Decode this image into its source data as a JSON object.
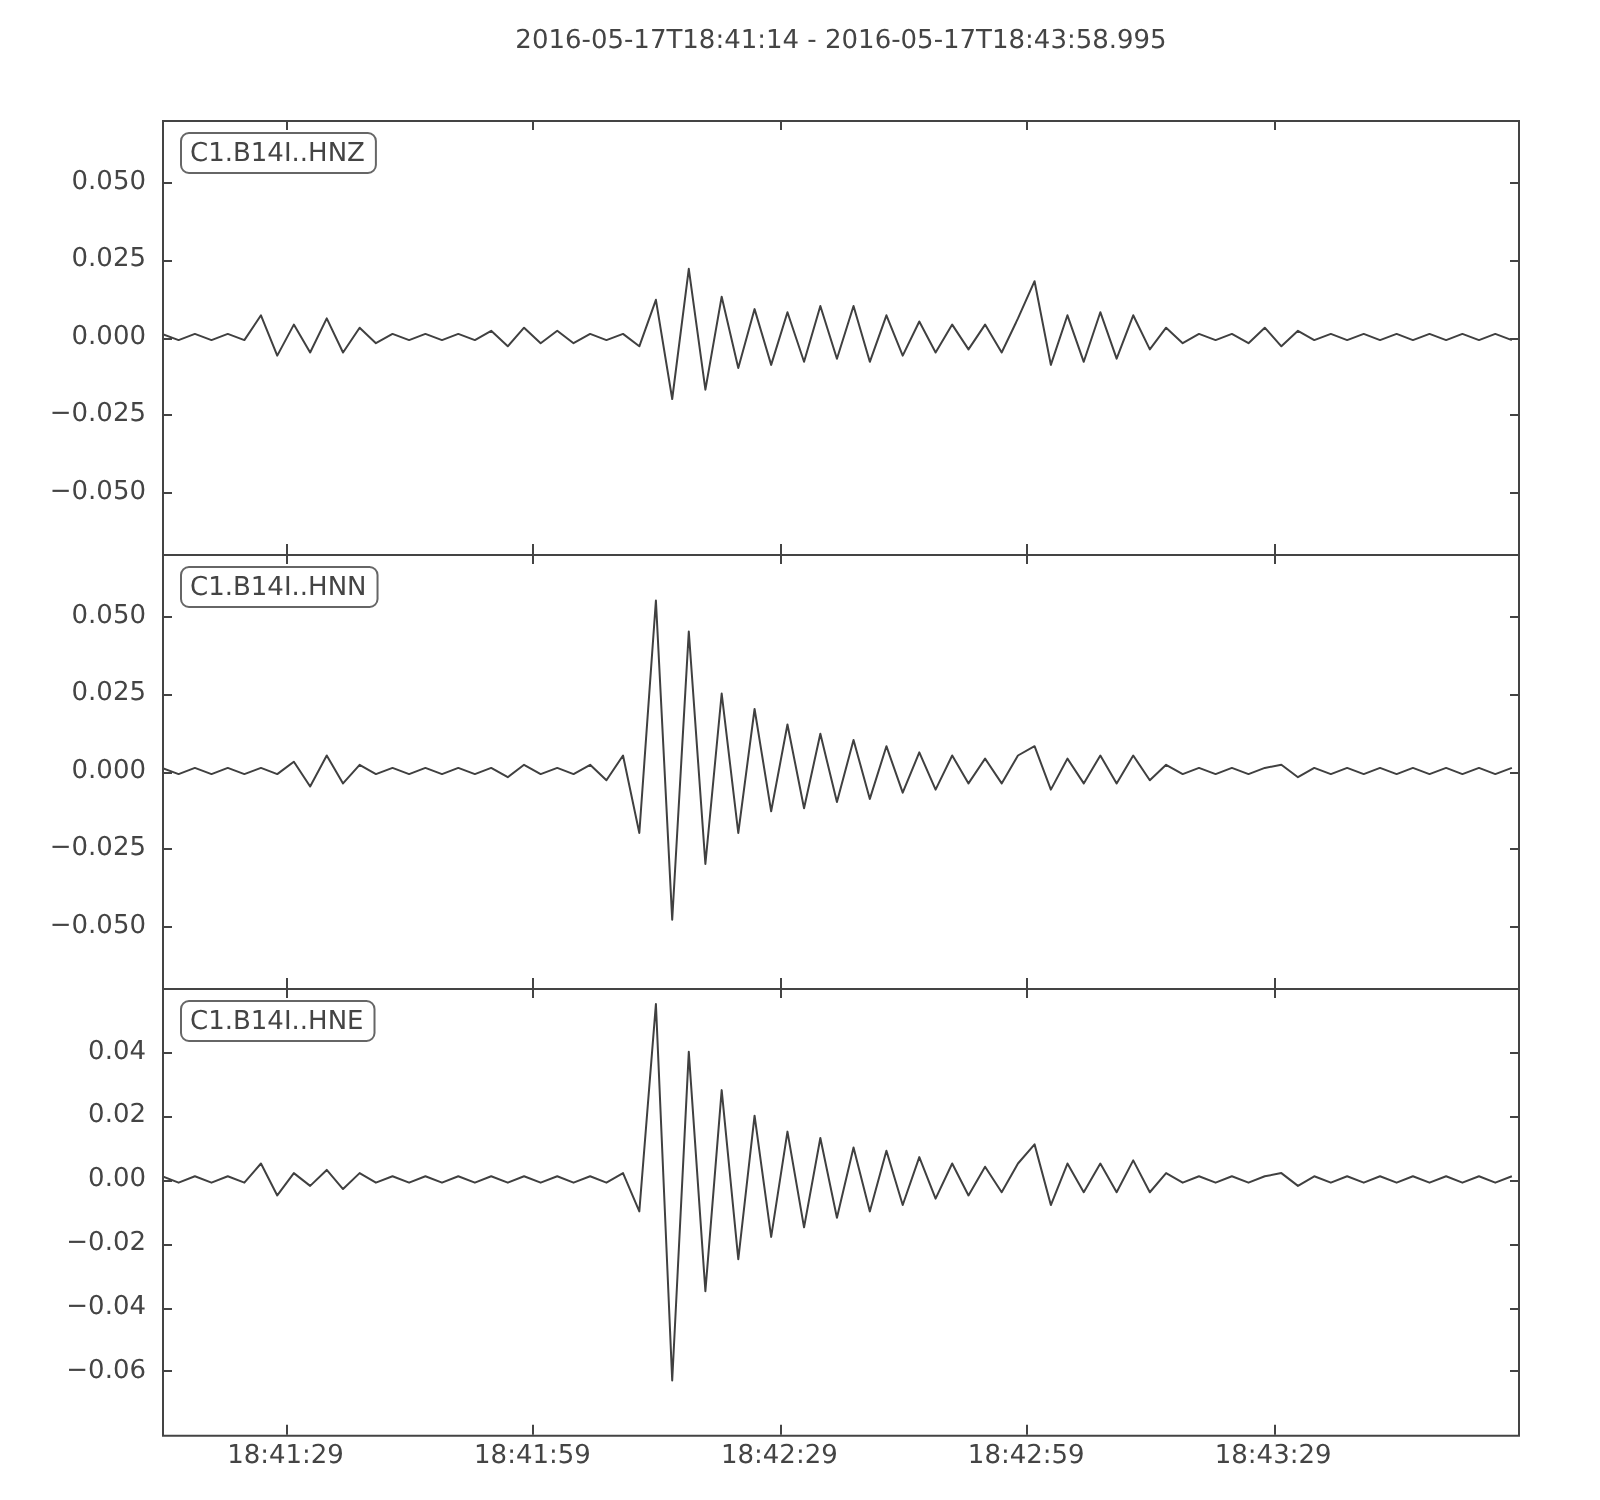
{
  "chart_data": [
    {
      "type": "line",
      "title": "2016-05-17T18:41:14  -  2016-05-17T18:43:58.995",
      "annotations": [
        "C1.B14I..HNZ"
      ],
      "legend": false,
      "grid": false,
      "marker": "none",
      "line_style": "solid",
      "tick_labels": "y",
      "x": [
        18.68722,
        18.68778,
        18.68833,
        18.68889,
        18.68944,
        18.69,
        18.69056,
        18.69111,
        18.69167,
        18.69222,
        18.69278,
        18.69333,
        18.69389,
        18.69444,
        18.695,
        18.69556,
        18.69611,
        18.69667,
        18.69722,
        18.69778,
        18.69833,
        18.69889,
        18.69944,
        18.7,
        18.70056,
        18.70111,
        18.70167,
        18.70222,
        18.70278,
        18.70333,
        18.70389,
        18.70444,
        18.705,
        18.70556,
        18.70611,
        18.70667,
        18.70722,
        18.70778,
        18.70833,
        18.70889,
        18.70944,
        18.71,
        18.71056,
        18.71111,
        18.71167,
        18.71222,
        18.71278,
        18.71333,
        18.71389,
        18.71444,
        18.715,
        18.71556,
        18.71611,
        18.71667,
        18.71722,
        18.71778,
        18.71833,
        18.71889,
        18.71944,
        18.72,
        18.72056,
        18.72111,
        18.72167,
        18.72222,
        18.72278,
        18.72333,
        18.72389,
        18.72444,
        18.725,
        18.72556,
        18.72611,
        18.72667,
        18.72722,
        18.72778,
        18.72833,
        18.72889,
        18.72944,
        18.73,
        18.73056,
        18.73111,
        18.73167,
        18.73222,
        18.73278
      ],
      "series": [
        {
          "color": "#404040",
          "values": [
            0.001,
            -0.001,
            0.001,
            -0.001,
            0.001,
            -0.001,
            0.007,
            -0.006,
            0.004,
            -0.005,
            0.006,
            -0.005,
            0.003,
            -0.002,
            0.001,
            -0.001,
            0.001,
            -0.001,
            0.001,
            -0.001,
            0.002,
            -0.003,
            0.003,
            -0.002,
            0.002,
            -0.002,
            0.001,
            -0.001,
            0.001,
            -0.003,
            0.012,
            -0.02,
            0.022,
            -0.017,
            0.013,
            -0.01,
            0.009,
            -0.009,
            0.008,
            -0.008,
            0.01,
            -0.007,
            0.01,
            -0.008,
            0.007,
            -0.006,
            0.005,
            -0.005,
            0.004,
            -0.004,
            0.004,
            -0.005,
            0.006,
            0.018,
            -0.009,
            0.007,
            -0.008,
            0.008,
            -0.007,
            0.007,
            -0.004,
            0.003,
            -0.002,
            0.001,
            -0.001,
            0.001,
            -0.002,
            0.003,
            -0.003,
            0.002,
            -0.001,
            0.001,
            -0.001,
            0.001,
            -0.001,
            0.001,
            -0.001,
            0.001,
            -0.001,
            0.001,
            -0.001,
            0.001,
            -0.001
          ]
        }
      ],
      "xlim": [
        18.68722,
        18.7330542
      ],
      "xticks": [
        {
          "value": 18.6913889,
          "label": null
        },
        {
          "value": 18.6997222,
          "label": null
        },
        {
          "value": 18.7080556,
          "label": null
        },
        {
          "value": 18.7163889,
          "label": null
        },
        {
          "value": 18.7247222,
          "label": null
        }
      ],
      "ylim": [
        -0.07,
        0.07
      ],
      "yticks": [
        {
          "value": -0.05,
          "label": "−0.050"
        },
        {
          "value": -0.025,
          "label": "−0.025"
        },
        {
          "value": 0,
          "label": "0.000"
        },
        {
          "value": 0.025,
          "label": "0.025"
        },
        {
          "value": 0.05,
          "label": "0.050"
        }
      ]
    },
    {
      "type": "line",
      "annotations": [
        "C1.B14I..HNN"
      ],
      "legend": false,
      "grid": false,
      "marker": "none",
      "line_style": "solid",
      "tick_labels": "y",
      "x": [
        18.68722,
        18.68778,
        18.68833,
        18.68889,
        18.68944,
        18.69,
        18.69056,
        18.69111,
        18.69167,
        18.69222,
        18.69278,
        18.69333,
        18.69389,
        18.69444,
        18.695,
        18.69556,
        18.69611,
        18.69667,
        18.69722,
        18.69778,
        18.69833,
        18.69889,
        18.69944,
        18.7,
        18.70056,
        18.70111,
        18.70167,
        18.70222,
        18.70278,
        18.70333,
        18.70389,
        18.70444,
        18.705,
        18.70556,
        18.70611,
        18.70667,
        18.70722,
        18.70778,
        18.70833,
        18.70889,
        18.70944,
        18.71,
        18.71056,
        18.71111,
        18.71167,
        18.71222,
        18.71278,
        18.71333,
        18.71389,
        18.71444,
        18.715,
        18.71556,
        18.71611,
        18.71667,
        18.71722,
        18.71778,
        18.71833,
        18.71889,
        18.71944,
        18.72,
        18.72056,
        18.72111,
        18.72167,
        18.72222,
        18.72278,
        18.72333,
        18.72389,
        18.72444,
        18.725,
        18.72556,
        18.72611,
        18.72667,
        18.72722,
        18.72778,
        18.72833,
        18.72889,
        18.72944,
        18.73,
        18.73056,
        18.73111,
        18.73167,
        18.73222,
        18.73278
      ],
      "series": [
        {
          "color": "#404040",
          "values": [
            0.001,
            -0.001,
            0.001,
            -0.001,
            0.001,
            -0.001,
            0.001,
            -0.001,
            0.003,
            -0.005,
            0.005,
            -0.004,
            0.002,
            -0.001,
            0.001,
            -0.001,
            0.001,
            -0.001,
            0.001,
            -0.001,
            0.001,
            -0.002,
            0.002,
            -0.001,
            0.001,
            -0.001,
            0.002,
            -0.003,
            0.005,
            -0.02,
            0.055,
            -0.048,
            0.045,
            -0.03,
            0.025,
            -0.02,
            0.02,
            -0.013,
            0.015,
            -0.012,
            0.012,
            -0.01,
            0.01,
            -0.009,
            0.008,
            -0.007,
            0.006,
            -0.006,
            0.005,
            -0.004,
            0.004,
            -0.004,
            0.005,
            0.008,
            -0.006,
            0.004,
            -0.004,
            0.005,
            -0.004,
            0.005,
            -0.003,
            0.002,
            -0.001,
            0.001,
            -0.001,
            0.001,
            -0.001,
            0.001,
            0.002,
            -0.002,
            0.001,
            -0.001,
            0.001,
            -0.001,
            0.001,
            -0.001,
            0.001,
            -0.001,
            0.001,
            -0.001,
            0.001,
            -0.001,
            0.001
          ]
        }
      ],
      "xlim": [
        18.68722,
        18.7330542
      ],
      "xticks": [
        {
          "value": 18.6913889,
          "label": null
        },
        {
          "value": 18.6997222,
          "label": null
        },
        {
          "value": 18.7080556,
          "label": null
        },
        {
          "value": 18.7163889,
          "label": null
        },
        {
          "value": 18.7247222,
          "label": null
        }
      ],
      "ylim": [
        -0.07,
        0.07
      ],
      "yticks": [
        {
          "value": -0.05,
          "label": "−0.050"
        },
        {
          "value": -0.025,
          "label": "−0.025"
        },
        {
          "value": 0,
          "label": "0.000"
        },
        {
          "value": 0.025,
          "label": "0.025"
        },
        {
          "value": 0.05,
          "label": "0.050"
        }
      ]
    },
    {
      "type": "line",
      "annotations": [
        "C1.B14I..HNE"
      ],
      "legend": false,
      "grid": false,
      "marker": "none",
      "line_style": "solid",
      "x": [
        18.68722,
        18.68778,
        18.68833,
        18.68889,
        18.68944,
        18.69,
        18.69056,
        18.69111,
        18.69167,
        18.69222,
        18.69278,
        18.69333,
        18.69389,
        18.69444,
        18.695,
        18.69556,
        18.69611,
        18.69667,
        18.69722,
        18.69778,
        18.69833,
        18.69889,
        18.69944,
        18.7,
        18.70056,
        18.70111,
        18.70167,
        18.70222,
        18.70278,
        18.70333,
        18.70389,
        18.70444,
        18.705,
        18.70556,
        18.70611,
        18.70667,
        18.70722,
        18.70778,
        18.70833,
        18.70889,
        18.70944,
        18.71,
        18.71056,
        18.71111,
        18.71167,
        18.71222,
        18.71278,
        18.71333,
        18.71389,
        18.71444,
        18.715,
        18.71556,
        18.71611,
        18.71667,
        18.71722,
        18.71778,
        18.71833,
        18.71889,
        18.71944,
        18.72,
        18.72056,
        18.72111,
        18.72167,
        18.72222,
        18.72278,
        18.72333,
        18.72389,
        18.72444,
        18.725,
        18.72556,
        18.72611,
        18.72667,
        18.72722,
        18.72778,
        18.72833,
        18.72889,
        18.72944,
        18.73,
        18.73056,
        18.73111,
        18.73167,
        18.73222,
        18.73278
      ],
      "series": [
        {
          "color": "#404040",
          "values": [
            0.001,
            -0.001,
            0.001,
            -0.001,
            0.001,
            -0.001,
            0.005,
            -0.005,
            0.002,
            -0.002,
            0.003,
            -0.003,
            0.002,
            -0.001,
            0.001,
            -0.001,
            0.001,
            -0.001,
            0.001,
            -0.001,
            0.001,
            -0.001,
            0.001,
            -0.001,
            0.001,
            -0.001,
            0.001,
            -0.001,
            0.002,
            -0.01,
            0.055,
            -0.063,
            0.04,
            -0.035,
            0.028,
            -0.025,
            0.02,
            -0.018,
            0.015,
            -0.015,
            0.013,
            -0.012,
            0.01,
            -0.01,
            0.009,
            -0.008,
            0.007,
            -0.006,
            0.005,
            -0.005,
            0.004,
            -0.004,
            0.005,
            0.011,
            -0.008,
            0.005,
            -0.004,
            0.005,
            -0.004,
            0.006,
            -0.004,
            0.002,
            -0.001,
            0.001,
            -0.001,
            0.001,
            -0.001,
            0.001,
            0.002,
            -0.002,
            0.001,
            -0.001,
            0.001,
            -0.001,
            0.001,
            -0.001,
            0.001,
            -0.001,
            0.001,
            -0.001,
            0.001,
            -0.001,
            0.001
          ]
        }
      ],
      "xlim": [
        18.68722,
        18.7330542
      ],
      "xticks": [
        {
          "value": 18.6913889,
          "label": "18:41:29"
        },
        {
          "value": 18.6997222,
          "label": "18:41:59"
        },
        {
          "value": 18.7080556,
          "label": "18:42:29"
        },
        {
          "value": 18.7163889,
          "label": "18:42:59"
        },
        {
          "value": 18.7247222,
          "label": "18:43:29"
        }
      ],
      "ylim": [
        -0.08,
        0.06
      ],
      "yticks": [
        {
          "value": -0.06,
          "label": "−0.06"
        },
        {
          "value": -0.04,
          "label": "−0.04"
        },
        {
          "value": -0.02,
          "label": "−0.02"
        },
        {
          "value": 0,
          "label": "0.00"
        },
        {
          "value": 0.02,
          "label": "0.02"
        },
        {
          "value": 0.04,
          "label": "0.04"
        }
      ]
    }
  ]
}
